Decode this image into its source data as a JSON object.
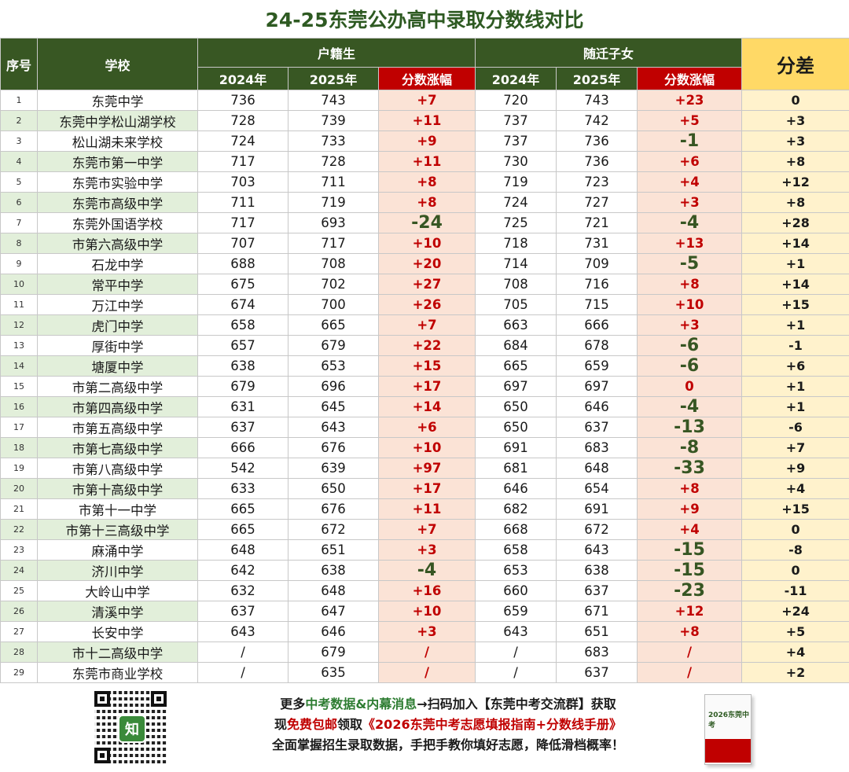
{
  "title": "24-25东莞公办高中录取分数线对比",
  "header": {
    "idx": "序号",
    "school": "学校",
    "group_huji": "户籍生",
    "group_suiqian": "随迁子女",
    "y2024": "2024年",
    "y2025": "2025年",
    "delta": "分数涨幅",
    "gap": "分差"
  },
  "rows": [
    {
      "idx": "1",
      "school": "东莞中学",
      "h24": "736",
      "h25": "743",
      "hd": "+7",
      "s24": "720",
      "s25": "743",
      "sd": "+23",
      "gap": "0"
    },
    {
      "idx": "2",
      "school": "东莞中学松山湖学校",
      "h24": "728",
      "h25": "739",
      "hd": "+11",
      "s24": "737",
      "s25": "742",
      "sd": "+5",
      "gap": "+3"
    },
    {
      "idx": "3",
      "school": "松山湖未来学校",
      "h24": "724",
      "h25": "733",
      "hd": "+9",
      "s24": "737",
      "s25": "736",
      "sd": "-1",
      "gap": "+3"
    },
    {
      "idx": "4",
      "school": "东莞市第一中学",
      "h24": "717",
      "h25": "728",
      "hd": "+11",
      "s24": "730",
      "s25": "736",
      "sd": "+6",
      "gap": "+8"
    },
    {
      "idx": "5",
      "school": "东莞市实验中学",
      "h24": "703",
      "h25": "711",
      "hd": "+8",
      "s24": "719",
      "s25": "723",
      "sd": "+4",
      "gap": "+12"
    },
    {
      "idx": "6",
      "school": "东莞市高级中学",
      "h24": "711",
      "h25": "719",
      "hd": "+8",
      "s24": "724",
      "s25": "727",
      "sd": "+3",
      "gap": "+8"
    },
    {
      "idx": "7",
      "school": "东莞外国语学校",
      "h24": "717",
      "h25": "693",
      "hd": "-24",
      "s24": "725",
      "s25": "721",
      "sd": "-4",
      "gap": "+28"
    },
    {
      "idx": "8",
      "school": "市第六高级中学",
      "h24": "707",
      "h25": "717",
      "hd": "+10",
      "s24": "718",
      "s25": "731",
      "sd": "+13",
      "gap": "+14"
    },
    {
      "idx": "9",
      "school": "石龙中学",
      "h24": "688",
      "h25": "708",
      "hd": "+20",
      "s24": "714",
      "s25": "709",
      "sd": "-5",
      "gap": "+1"
    },
    {
      "idx": "10",
      "school": "常平中学",
      "h24": "675",
      "h25": "702",
      "hd": "+27",
      "s24": "708",
      "s25": "716",
      "sd": "+8",
      "gap": "+14"
    },
    {
      "idx": "11",
      "school": "万江中学",
      "h24": "674",
      "h25": "700",
      "hd": "+26",
      "s24": "705",
      "s25": "715",
      "sd": "+10",
      "gap": "+15"
    },
    {
      "idx": "12",
      "school": "虎门中学",
      "h24": "658",
      "h25": "665",
      "hd": "+7",
      "s24": "663",
      "s25": "666",
      "sd": "+3",
      "gap": "+1"
    },
    {
      "idx": "13",
      "school": "厚街中学",
      "h24": "657",
      "h25": "679",
      "hd": "+22",
      "s24": "684",
      "s25": "678",
      "sd": "-6",
      "gap": "-1"
    },
    {
      "idx": "14",
      "school": "塘厦中学",
      "h24": "638",
      "h25": "653",
      "hd": "+15",
      "s24": "665",
      "s25": "659",
      "sd": "-6",
      "gap": "+6"
    },
    {
      "idx": "15",
      "school": "市第二高级中学",
      "h24": "679",
      "h25": "696",
      "hd": "+17",
      "s24": "697",
      "s25": "697",
      "sd": "0",
      "gap": "+1"
    },
    {
      "idx": "16",
      "school": "市第四高级中学",
      "h24": "631",
      "h25": "645",
      "hd": "+14",
      "s24": "650",
      "s25": "646",
      "sd": "-4",
      "gap": "+1"
    },
    {
      "idx": "17",
      "school": "市第五高级中学",
      "h24": "637",
      "h25": "643",
      "hd": "+6",
      "s24": "650",
      "s25": "637",
      "sd": "-13",
      "gap": "-6"
    },
    {
      "idx": "18",
      "school": "市第七高级中学",
      "h24": "666",
      "h25": "676",
      "hd": "+10",
      "s24": "691",
      "s25": "683",
      "sd": "-8",
      "gap": "+7"
    },
    {
      "idx": "19",
      "school": "市第八高级中学",
      "h24": "542",
      "h25": "639",
      "hd": "+97",
      "s24": "681",
      "s25": "648",
      "sd": "-33",
      "gap": "+9"
    },
    {
      "idx": "20",
      "school": "市第十高级中学",
      "h24": "633",
      "h25": "650",
      "hd": "+17",
      "s24": "646",
      "s25": "654",
      "sd": "+8",
      "gap": "+4"
    },
    {
      "idx": "21",
      "school": "市第十一中学",
      "h24": "665",
      "h25": "676",
      "hd": "+11",
      "s24": "682",
      "s25": "691",
      "sd": "+9",
      "gap": "+15"
    },
    {
      "idx": "22",
      "school": "市第十三高级中学",
      "h24": "665",
      "h25": "672",
      "hd": "+7",
      "s24": "668",
      "s25": "672",
      "sd": "+4",
      "gap": "0"
    },
    {
      "idx": "23",
      "school": "麻涌中学",
      "h24": "648",
      "h25": "651",
      "hd": "+3",
      "s24": "658",
      "s25": "643",
      "sd": "-15",
      "gap": "-8"
    },
    {
      "idx": "24",
      "school": "济川中学",
      "h24": "642",
      "h25": "638",
      "hd": "-4",
      "s24": "653",
      "s25": "638",
      "sd": "-15",
      "gap": "0"
    },
    {
      "idx": "25",
      "school": "大岭山中学",
      "h24": "632",
      "h25": "648",
      "hd": "+16",
      "s24": "660",
      "s25": "637",
      "sd": "-23",
      "gap": "-11"
    },
    {
      "idx": "26",
      "school": "清溪中学",
      "h24": "637",
      "h25": "647",
      "hd": "+10",
      "s24": "659",
      "s25": "671",
      "sd": "+12",
      "gap": "+24"
    },
    {
      "idx": "27",
      "school": "长安中学",
      "h24": "643",
      "h25": "646",
      "hd": "+3",
      "s24": "643",
      "s25": "651",
      "sd": "+8",
      "gap": "+5"
    },
    {
      "idx": "28",
      "school": "市十二高级中学",
      "h24": "/",
      "h25": "679",
      "hd": "/",
      "s24": "/",
      "s25": "683",
      "sd": "/",
      "gap": "+4"
    },
    {
      "idx": "29",
      "school": "东莞市商业学校",
      "h24": "/",
      "h25": "635",
      "hd": "/",
      "s24": "/",
      "s25": "637",
      "sd": "/",
      "gap": "+2"
    }
  ],
  "footer": {
    "line1_a": "更多",
    "line1_b": "中考数据&内幕消息",
    "line1_c": "→扫码加入【东莞中考交流群】获取",
    "line2_a": "现",
    "line2_b": "免费包邮",
    "line2_c": "领取",
    "line2_d": "《2026东莞中考志愿填报指南+分数线手册》",
    "line3": "全面掌握招生录取数据，手把手教你填好志愿，降低滑档概率！",
    "qr_logo": "知",
    "book_title": "2026东莞中考"
  }
}
